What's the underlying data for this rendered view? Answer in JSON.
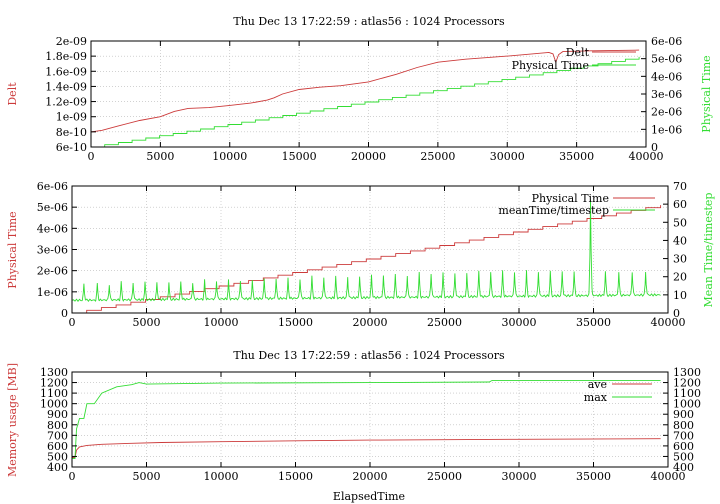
{
  "colors": {
    "red": "#cc3b3b",
    "green": "#33dd33"
  },
  "chart_data": [
    {
      "type": "line",
      "title": "Thu Dec 13 17:22:59 : atlas56 : 1024 Processors",
      "xlabel": "",
      "ylabel": "Delt",
      "y2label": "Physical Time",
      "xlim": [
        0,
        40000
      ],
      "ylim": [
        6e-10,
        2e-09
      ],
      "y2lim": [
        0,
        6e-06
      ],
      "xticks": [
        "0",
        "5000",
        "10000",
        "15000",
        "20000",
        "25000",
        "30000",
        "35000",
        "40000"
      ],
      "yticks": [
        "6e-10",
        "8e-10",
        "1e-09",
        "1.2e-09",
        "1.4e-09",
        "1.6e-09",
        "1.8e-09",
        "2e-09"
      ],
      "y2ticks": [
        "0",
        "1e-06",
        "2e-06",
        "3e-06",
        "4e-06",
        "5e-06",
        "6e-06"
      ],
      "grid": true,
      "legend_position": "top-right",
      "series": [
        {
          "name": "Delt",
          "axis": "y",
          "color": "#cc3b3b",
          "shape": "smooth",
          "x": [
            0,
            800,
            2000,
            3500,
            5000,
            6000,
            7000,
            8500,
            10000,
            11500,
            12700,
            13200,
            13800,
            15000,
            16500,
            18000,
            20000,
            22000,
            23500,
            25000,
            27000,
            30000,
            33000,
            33300,
            33500,
            33700,
            34000,
            36000,
            39500
          ],
          "values": [
            8e-10,
            8.2e-10,
            8.8e-10,
            9.5e-10,
            1e-09,
            1.07e-09,
            1.11e-09,
            1.12e-09,
            1.15e-09,
            1.18e-09,
            1.22e-09,
            1.25e-09,
            1.3e-09,
            1.36e-09,
            1.39e-09,
            1.41e-09,
            1.46e-09,
            1.56e-09,
            1.65e-09,
            1.72e-09,
            1.76e-09,
            1.8e-09,
            1.85e-09,
            1.83e-09,
            1.72e-09,
            1.82e-09,
            1.86e-09,
            1.87e-09,
            1.88e-09
          ]
        },
        {
          "name": "Physical Time",
          "axis": "y2",
          "color": "#33dd33",
          "shape": "step",
          "x": [
            0,
            39500
          ],
          "values": [
            0,
            5.1e-06
          ]
        }
      ]
    },
    {
      "type": "line",
      "title": "",
      "xlabel": "",
      "ylabel": "Physical Time",
      "y2label": "Mean Time/timestep",
      "xlim": [
        0,
        40000
      ],
      "ylim": [
        0,
        6e-06
      ],
      "y2lim": [
        0,
        70
      ],
      "xticks": [
        "0",
        "5000",
        "10000",
        "15000",
        "20000",
        "25000",
        "30000",
        "35000",
        "40000"
      ],
      "yticks": [
        "0",
        "1e-06",
        "2e-06",
        "3e-06",
        "4e-06",
        "5e-06",
        "6e-06"
      ],
      "y2ticks": [
        "0",
        "10",
        "20",
        "30",
        "40",
        "50",
        "60",
        "70"
      ],
      "grid": true,
      "legend_position": "top-right",
      "series": [
        {
          "name": "Physical Time",
          "axis": "y",
          "color": "#cc3b3b",
          "shape": "step",
          "x": [
            0,
            39500
          ],
          "values": [
            0,
            5.1e-06
          ]
        },
        {
          "name": "meanTime/timestep",
          "axis": "y2",
          "color": "#33dd33",
          "shape": "spiky",
          "x": [
            0,
            39500
          ],
          "values": [
            7,
            10
          ],
          "peak_x": [
            800,
            1700,
            2500,
            3300,
            4100,
            4900,
            5700,
            6500,
            7300,
            8100,
            8900,
            9700,
            10500,
            11300,
            12100,
            12900,
            13700,
            14500,
            15300,
            16100,
            16900,
            17700,
            18500,
            19300,
            20100,
            20900,
            21700,
            22500,
            23300,
            24100,
            24900,
            25700,
            26500,
            27300,
            28100,
            28900,
            29700,
            30500,
            31300,
            32100,
            32900,
            33700,
            34800,
            35800,
            36700,
            37600,
            38500
          ],
          "peak_values": [
            16,
            16,
            16,
            17,
            17,
            17,
            17,
            17,
            17,
            17,
            18,
            18,
            18,
            18,
            18,
            19,
            19,
            19,
            19,
            20,
            20,
            20,
            20,
            20,
            21,
            21,
            21,
            21,
            22,
            22,
            22,
            22,
            22,
            23,
            23,
            23,
            23,
            23,
            23,
            23,
            23,
            23,
            63,
            23,
            23,
            23,
            23
          ]
        }
      ]
    },
    {
      "type": "line",
      "title": "Thu Dec 13 17:22:59 : atlas56 : 1024 Processors",
      "xlabel": "ElapsedTime",
      "ylabel": "Memory usage [MB]",
      "y2label": "",
      "xlim": [
        0,
        40000
      ],
      "ylim": [
        400,
        1300
      ],
      "y2lim": [
        400,
        1300
      ],
      "xticks": [
        "0",
        "5000",
        "10000",
        "15000",
        "20000",
        "25000",
        "30000",
        "35000",
        "40000"
      ],
      "yticks": [
        "400",
        "500",
        "600",
        "700",
        "800",
        "900",
        "1000",
        "1100",
        "1200",
        "1300"
      ],
      "y2ticks": [
        "400",
        "500",
        "600",
        "700",
        "800",
        "900",
        "1000",
        "1100",
        "1200",
        "1300"
      ],
      "grid": true,
      "legend_position": "top-right",
      "series": [
        {
          "name": "ave",
          "axis": "y",
          "color": "#cc3b3b",
          "shape": "smooth",
          "x": [
            0,
            200,
            300,
            500,
            1000,
            2000,
            4000,
            6000,
            10000,
            15000,
            20000,
            30000,
            39500
          ],
          "values": [
            490,
            490,
            560,
            590,
            605,
            615,
            625,
            632,
            640,
            648,
            655,
            662,
            668
          ]
        },
        {
          "name": "max",
          "axis": "y",
          "color": "#33dd33",
          "shape": "smooth",
          "x": [
            0,
            200,
            300,
            500,
            800,
            1000,
            1500,
            2000,
            3000,
            4000,
            4500,
            5000,
            10000,
            20000,
            28000,
            28200,
            39500
          ],
          "values": [
            480,
            480,
            760,
            860,
            860,
            1000,
            1000,
            1100,
            1160,
            1180,
            1200,
            1185,
            1195,
            1200,
            1205,
            1220,
            1220
          ]
        }
      ]
    }
  ]
}
